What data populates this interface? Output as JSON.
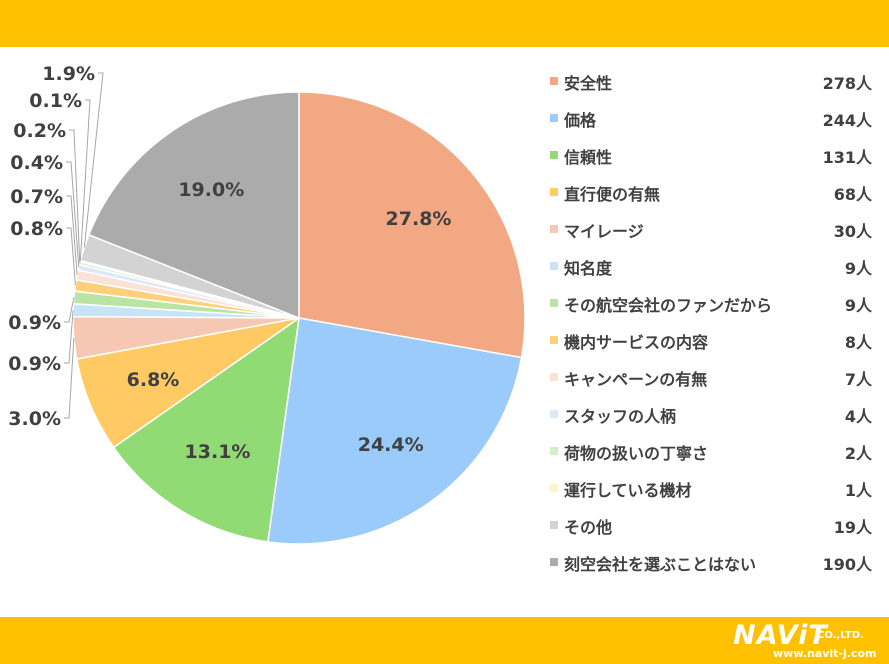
{
  "chart_data": {
    "type": "pie",
    "categories": [
      "安全性",
      "価格",
      "信頼性",
      "直行便の有無",
      "マイレージ",
      "知名度",
      "その航空会社のファンだから",
      "機内サービスの内容",
      "キャンペーンの有無",
      "スタッフの人柄",
      "荷物の扱いの丁寧さ",
      "運行している機材",
      "その他",
      "刻空会社を選ぶことはない"
    ],
    "values": [
      278,
      244,
      131,
      68,
      30,
      9,
      9,
      8,
      7,
      4,
      2,
      1,
      19,
      190
    ],
    "counts": [
      "278人",
      "244人",
      "131人",
      "68人",
      "30人",
      "9人",
      "9人",
      "8人",
      "7人",
      "4人",
      "2人",
      "1人",
      "19人",
      "190人"
    ],
    "percent_labels": [
      "27.8%",
      "24.4%",
      "13.1%",
      "6.8%",
      "3.0%",
      "0.9%",
      "0.9%",
      "0.8%",
      "0.7%",
      "0.4%",
      "0.2%",
      "0.1%",
      "1.9%",
      "19.0%"
    ],
    "colors": [
      "#F2A983",
      "#9BCBFA",
      "#90DB74",
      "#FFC964",
      "#F6C7B3",
      "#C7E4F7",
      "#B9E4A4",
      "#FFD07A",
      "#FCE1D6",
      "#DAE9F8",
      "#D4EFC8",
      "#FFF4C8",
      "#D3D3D3",
      "#ABABAB"
    ],
    "legend_position": "right"
  },
  "branding": {
    "logo_main": "NAViT",
    "logo_co": "CO.,LTD.",
    "logo_url": "www.navit-j.com"
  }
}
